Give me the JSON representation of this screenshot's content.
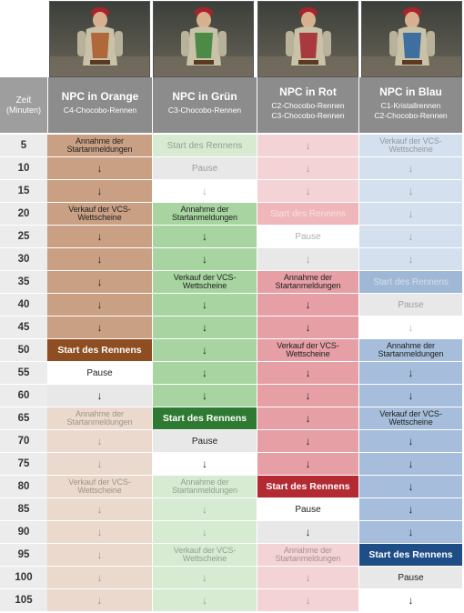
{
  "header": {
    "zeit_label": "Zeit",
    "minuten_label": "(Minuten)",
    "npcs": [
      {
        "name": "NPC in Orange",
        "lines": [
          "C4-Chocobo-Rennen"
        ]
      },
      {
        "name": "NPC in Grün",
        "lines": [
          "C3-Chocobo-Rennen"
        ]
      },
      {
        "name": "NPC in Rot",
        "lines": [
          "C2-Chocobo-Rennen",
          "C3-Chocobo-Rennen"
        ]
      },
      {
        "name": "NPC in Blau",
        "lines": [
          "C1-Kristallrennen",
          "C2-Chocobo-Rennen"
        ]
      }
    ]
  },
  "colors": {
    "orange": "#c9a083",
    "orange_dark": "#8e4e22",
    "green": "#a7d4a0",
    "green_dark": "#2f7a33",
    "red": "#e59fa5",
    "red_dark": "#b32a33",
    "blue": "#a6bedb",
    "blue_dark": "#1f4d86",
    "row_white": "#ffffff",
    "row_grey": "#e8e8e8",
    "time_bg": "#ececec"
  },
  "rows": [
    {
      "time": "5",
      "cells": [
        {
          "t": "Annahme der\nStartanmeldungen",
          "s": "o"
        },
        {
          "t": "Start des Rennens",
          "s": "gL"
        },
        {
          "t": "↓",
          "s": "rL"
        },
        {
          "t": "Verkauf der VCS-\nWettscheine",
          "s": "bL"
        }
      ]
    },
    {
      "time": "10",
      "cells": [
        {
          "t": "↓",
          "s": "o"
        },
        {
          "t": "Pause",
          "s": "pL"
        },
        {
          "t": "↓",
          "s": "rL"
        },
        {
          "t": "↓",
          "s": "bL"
        }
      ]
    },
    {
      "time": "15",
      "cells": [
        {
          "t": "↓",
          "s": "o"
        },
        {
          "t": "↓",
          "s": "pL"
        },
        {
          "t": "↓",
          "s": "rL"
        },
        {
          "t": "↓",
          "s": "bL"
        }
      ]
    },
    {
      "time": "20",
      "cells": [
        {
          "t": "Verkauf der VCS-\nWettscheine",
          "s": "o"
        },
        {
          "t": "Annahme der\nStartanmeldungen",
          "s": "g"
        },
        {
          "t": "Start des Rennens",
          "s": "rS"
        },
        {
          "t": "↓",
          "s": "bL"
        }
      ]
    },
    {
      "time": "25",
      "cells": [
        {
          "t": "↓",
          "s": "o"
        },
        {
          "t": "↓",
          "s": "g"
        },
        {
          "t": "Pause",
          "s": "pL"
        },
        {
          "t": "↓",
          "s": "bL"
        }
      ]
    },
    {
      "time": "30",
      "cells": [
        {
          "t": "↓",
          "s": "o"
        },
        {
          "t": "↓",
          "s": "g"
        },
        {
          "t": "↓",
          "s": "pL"
        },
        {
          "t": "↓",
          "s": "bL"
        }
      ]
    },
    {
      "time": "35",
      "cells": [
        {
          "t": "↓",
          "s": "o"
        },
        {
          "t": "Verkauf der VCS-\nWettscheine",
          "s": "g"
        },
        {
          "t": "Annahme der\nStartanmeldungen",
          "s": "r"
        },
        {
          "t": "Start des Rennens",
          "s": "bS"
        }
      ]
    },
    {
      "time": "40",
      "cells": [
        {
          "t": "↓",
          "s": "o"
        },
        {
          "t": "↓",
          "s": "g"
        },
        {
          "t": "↓",
          "s": "r"
        },
        {
          "t": "Pause",
          "s": "pL"
        }
      ]
    },
    {
      "time": "45",
      "cells": [
        {
          "t": "↓",
          "s": "o"
        },
        {
          "t": "↓",
          "s": "g"
        },
        {
          "t": "↓",
          "s": "r"
        },
        {
          "t": "↓",
          "s": "pL"
        }
      ]
    },
    {
      "time": "50",
      "cells": [
        {
          "t": "Start des Rennens",
          "s": "oS"
        },
        {
          "t": "↓",
          "s": "g"
        },
        {
          "t": "Verkauf der VCS-\nWettscheine",
          "s": "r"
        },
        {
          "t": "Annahme der\nStartanmeldungen",
          "s": "b"
        }
      ]
    },
    {
      "time": "55",
      "cells": [
        {
          "t": "Pause",
          "s": "p"
        },
        {
          "t": "↓",
          "s": "g"
        },
        {
          "t": "↓",
          "s": "r"
        },
        {
          "t": "↓",
          "s": "b"
        }
      ]
    },
    {
      "time": "60",
      "cells": [
        {
          "t": "↓",
          "s": "p"
        },
        {
          "t": "↓",
          "s": "g"
        },
        {
          "t": "↓",
          "s": "r"
        },
        {
          "t": "↓",
          "s": "b"
        }
      ]
    },
    {
      "time": "65",
      "cells": [
        {
          "t": "Annahme der\nStartanmeldungen",
          "s": "oL"
        },
        {
          "t": "Start des Rennens",
          "s": "gS"
        },
        {
          "t": "↓",
          "s": "r"
        },
        {
          "t": "Verkauf der VCS-\nWettscheine",
          "s": "b"
        }
      ]
    },
    {
      "time": "70",
      "cells": [
        {
          "t": "↓",
          "s": "oL"
        },
        {
          "t": "Pause",
          "s": "p"
        },
        {
          "t": "↓",
          "s": "r"
        },
        {
          "t": "↓",
          "s": "b"
        }
      ]
    },
    {
      "time": "75",
      "cells": [
        {
          "t": "↓",
          "s": "oL"
        },
        {
          "t": "↓",
          "s": "p"
        },
        {
          "t": "↓",
          "s": "r"
        },
        {
          "t": "↓",
          "s": "b"
        }
      ]
    },
    {
      "time": "80",
      "cells": [
        {
          "t": "Verkauf der VCS-\nWettscheine",
          "s": "oL"
        },
        {
          "t": "Annahme der\nStartanmeldungen",
          "s": "gL"
        },
        {
          "t": "Start des Rennens",
          "s": "rSD"
        },
        {
          "t": "↓",
          "s": "b"
        }
      ]
    },
    {
      "time": "85",
      "cells": [
        {
          "t": "↓",
          "s": "oL"
        },
        {
          "t": "↓",
          "s": "gL"
        },
        {
          "t": "Pause",
          "s": "p"
        },
        {
          "t": "↓",
          "s": "b"
        }
      ]
    },
    {
      "time": "90",
      "cells": [
        {
          "t": "↓",
          "s": "oL"
        },
        {
          "t": "↓",
          "s": "gL"
        },
        {
          "t": "↓",
          "s": "p"
        },
        {
          "t": "↓",
          "s": "b"
        }
      ]
    },
    {
      "time": "95",
      "cells": [
        {
          "t": "↓",
          "s": "oL"
        },
        {
          "t": "Verkauf der VCS-\nWettscheine",
          "s": "gL"
        },
        {
          "t": "Annahme der\nStartanmeldungen",
          "s": "rL"
        },
        {
          "t": "Start des Rennens",
          "s": "bSD"
        }
      ]
    },
    {
      "time": "100",
      "cells": [
        {
          "t": "↓",
          "s": "oL"
        },
        {
          "t": "↓",
          "s": "gL"
        },
        {
          "t": "↓",
          "s": "rL"
        },
        {
          "t": "Pause",
          "s": "p"
        }
      ]
    },
    {
      "time": "105",
      "cells": [
        {
          "t": "↓",
          "s": "oL"
        },
        {
          "t": "↓",
          "s": "gL"
        },
        {
          "t": "↓",
          "s": "rL"
        },
        {
          "t": "↓",
          "s": "p"
        }
      ]
    }
  ]
}
